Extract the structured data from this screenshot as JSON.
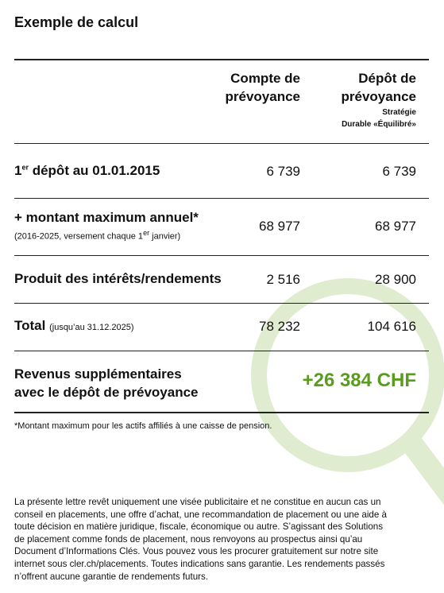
{
  "header": {
    "title": "Exemple de calcul"
  },
  "table": {
    "columns": [
      {
        "line1": "Compte de",
        "line2": "prévoyance"
      },
      {
        "line1": "Dépôt de",
        "line2": "prévoyance",
        "note1": "Stratégie",
        "note2": "Durable «Équilibré»"
      }
    ],
    "rows": [
      {
        "label": [
          "1",
          "er",
          " dépôt au 01.01.2015"
        ],
        "values": [
          "6 739",
          "6 739"
        ]
      },
      {
        "label": "+ montant maximum annuel*",
        "note": [
          "(2016-2025, versement chaque 1",
          "er",
          " janvier)"
        ],
        "values": [
          "68 977",
          "68 977"
        ]
      },
      {
        "label": "Produit des intérêts/rendements",
        "values": [
          "2 516",
          "28 900"
        ]
      },
      {
        "label": "Total",
        "note": "(jusqu’au 31.12.2025)",
        "values": [
          "78 232",
          "104 616"
        ]
      },
      {
        "label": [
          "Revenus supplémentaires",
          "avec le dépôt de prévoyance"
        ],
        "value": "+26 384 CHF"
      }
    ]
  },
  "footnote": "*Montant maximum pour les actifs affiliés à une caisse de pension.",
  "disclaimer": [
    "La présente lettre revêt uniquement une visée publicitaire et ne constitue en aucun cas un",
    "conseil en placements, une offre d’achat, une recommandation de placement ou une aide à",
    "toute décision en matière juridique, fiscale, économique ou autre. S’agissant des Solutions",
    "de placement comme fonds de placement, nous renvoyons au prospectus ainsi qu’au",
    "Document d’Informations Clés. Vous pouvez vous les procurer gratuitement sur notre site",
    "internet sous cler.ch/placements. Toutes indications sans garantie. Les rendements passés",
    "n’offrent aucune garantie de rendements futurs."
  ]
}
